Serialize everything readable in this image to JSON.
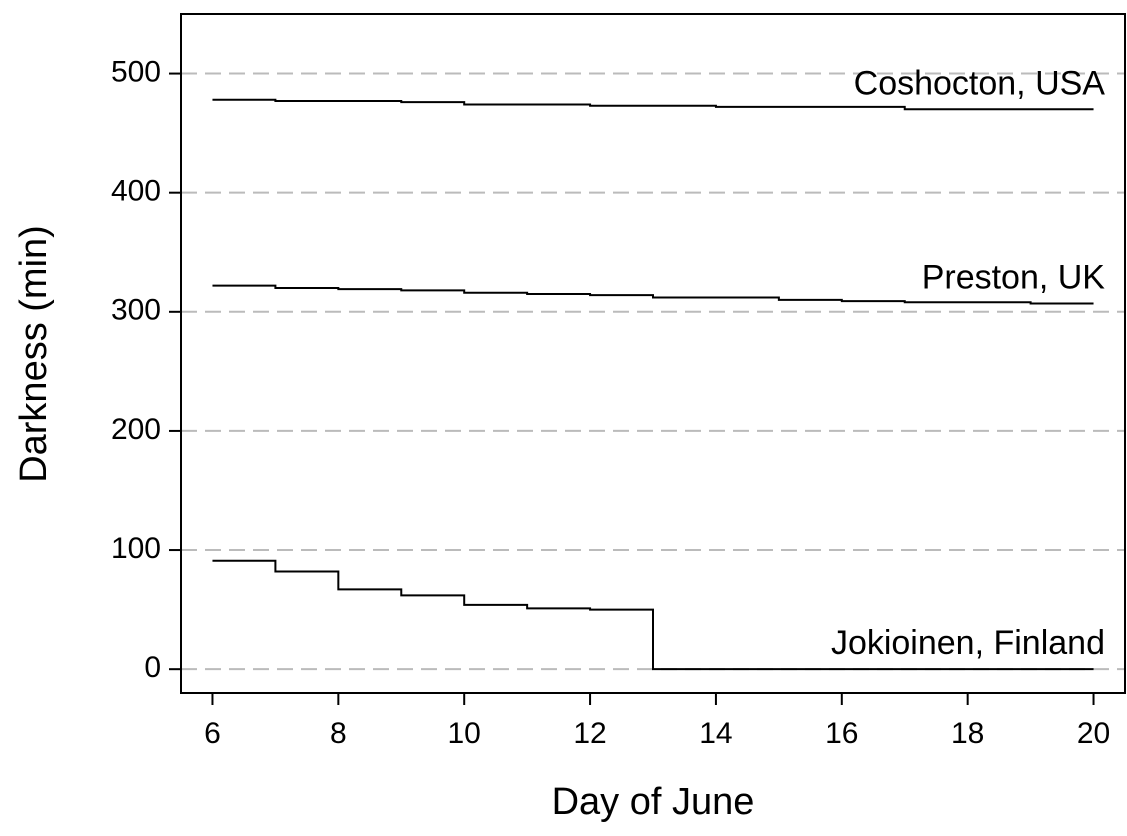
{
  "chart_data": {
    "type": "step",
    "x_label": "Day of June",
    "y_label": "Darkness (min)",
    "x": [
      6,
      7,
      8,
      9,
      10,
      11,
      12,
      13,
      14,
      15,
      16,
      17,
      18,
      19,
      20
    ],
    "series": [
      {
        "name": "Coshocton, USA",
        "color": "#000000",
        "values": [
          478,
          477,
          477,
          476,
          474,
          474,
          473,
          473,
          472,
          472,
          472,
          470,
          470,
          470,
          470
        ]
      },
      {
        "name": "Preston, UK",
        "color": "#000000",
        "values": [
          322,
          320,
          319,
          318,
          316,
          315,
          314,
          312,
          312,
          310,
          309,
          308,
          308,
          307,
          307
        ]
      },
      {
        "name": "Jokioinen, Finland",
        "color": "#000000",
        "values": [
          91,
          82,
          67,
          62,
          54,
          51,
          50,
          0,
          0,
          0,
          0,
          0,
          0,
          0,
          0
        ]
      }
    ],
    "xlim": [
      5.5,
      20.5
    ],
    "ylim": [
      -20,
      550
    ],
    "xticks": [
      6,
      8,
      10,
      12,
      14,
      16,
      18,
      20
    ],
    "yticks": [
      0,
      100,
      200,
      300,
      400,
      500
    ],
    "grid": true
  }
}
